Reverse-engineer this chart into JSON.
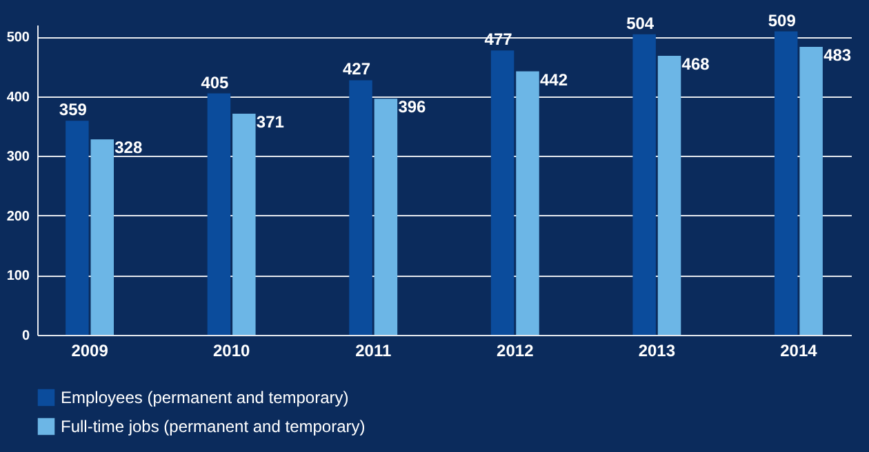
{
  "chart_data": {
    "type": "bar",
    "categories": [
      "2009",
      "2010",
      "2011",
      "2012",
      "2013",
      "2014"
    ],
    "series": [
      {
        "name": "Employees (permanent and temporary)",
        "color": "#0b4c9c",
        "values": [
          359,
          405,
          427,
          477,
          504,
          509
        ]
      },
      {
        "name": "Full-time jobs (permanent and temporary)",
        "color": "#6cb6e6",
        "values": [
          328,
          371,
          396,
          442,
          468,
          483
        ]
      }
    ],
    "ylim": [
      0,
      520
    ],
    "yticks": [
      0,
      100,
      200,
      300,
      400,
      500
    ],
    "grid": "y",
    "legend": "bottom",
    "data_labels": true
  }
}
